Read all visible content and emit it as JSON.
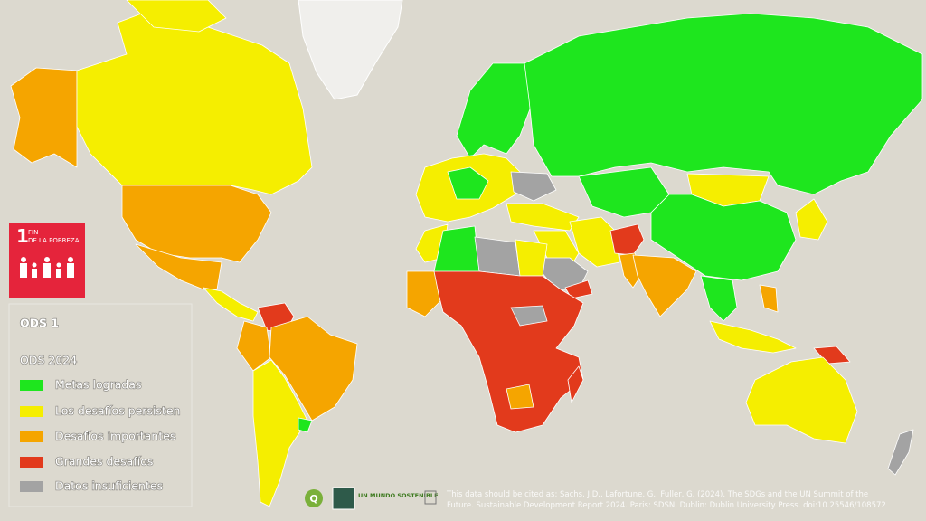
{
  "badge": {
    "number": "1",
    "lines": [
      "FIN",
      "DE LA POBREZA"
    ]
  },
  "legend": {
    "title": "ODS 1",
    "subtitle": "ODS 2024",
    "items": [
      {
        "label": "Metas logradas",
        "color": "#1ee61e"
      },
      {
        "label": "Los desafíos persisten",
        "color": "#f5ee00"
      },
      {
        "label": "Desafíos importantes",
        "color": "#f5a500"
      },
      {
        "label": "Grandes desafíos",
        "color": "#e23a1c"
      },
      {
        "label": "Datos insuficientes",
        "color": "#a3a3a3"
      }
    ]
  },
  "logo_text": "UN MUNDO SOSTENIBLE",
  "citation": [
    "This data should be cited as:  Sachs, J.D., Lafortune, G., Fuller, G. (2024). The SDGs and the UN Summit of the",
    "Future. Sustainable Development Report 2024. Paris: SDSN, Dublin: Dublin University Press. doi:10.25546/108572"
  ]
}
